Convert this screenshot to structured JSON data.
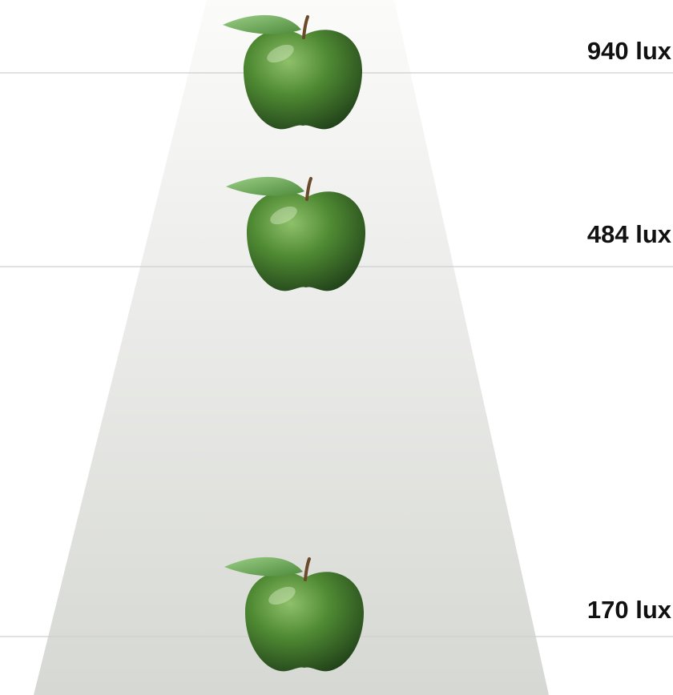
{
  "levels": [
    {
      "label": "940 lux"
    },
    {
      "label": "484 lux"
    },
    {
      "label": "170 lux"
    }
  ]
}
